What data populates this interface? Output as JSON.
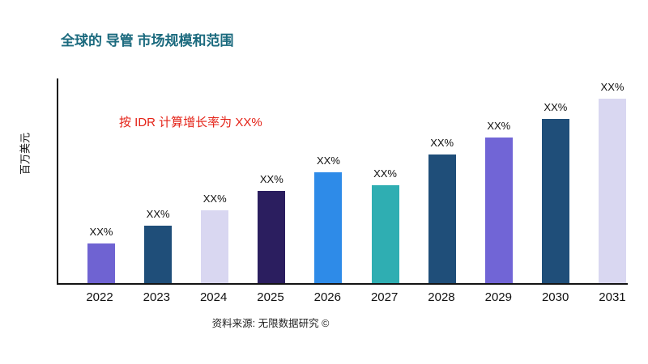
{
  "chart": {
    "title": "全球的 导管 市场规模和范围",
    "note": "按 IDR 计算增长率为 XX%",
    "ylabel": "百万美元",
    "source": "资料来源: 无限数据研究 ©"
  },
  "chart_data": {
    "type": "bar",
    "title": "全球的 导管 市场规模和范围",
    "annotation": "按 IDR 计算增长率为 XX%",
    "categories": [
      "2022",
      "2023",
      "2024",
      "2025",
      "2026",
      "2027",
      "2028",
      "2029",
      "2030",
      "2031"
    ],
    "values": [
      50,
      72,
      92,
      116,
      140,
      123,
      162,
      184,
      207,
      232
    ],
    "value_labels": [
      "XX%",
      "XX%",
      "XX%",
      "XX%",
      "XX%",
      "XX%",
      "XX%",
      "XX%",
      "XX%",
      "XX%"
    ],
    "bar_colors": [
      "#6F63D2",
      "#1F4E79",
      "#D9D7F1",
      "#2B1E5F",
      "#2E8BE8",
      "#2FAEB2",
      "#1F4E79",
      "#7165D6",
      "#1F4E79",
      "#D9D7F1"
    ],
    "xlabel": "",
    "ylabel": "百万美元",
    "ylim": [
      0,
      260
    ],
    "grid": false,
    "legend": false,
    "source": "资料来源: 无限数据研究 ©",
    "title_color": "#1B6A7E",
    "annotation_color": "#E42217",
    "axis_color": "#141414"
  }
}
